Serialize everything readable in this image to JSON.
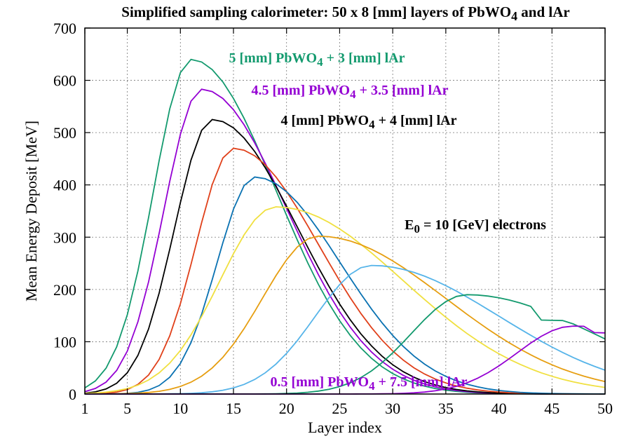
{
  "chart_data": {
    "type": "line",
    "title": {
      "pre": "Simplified sampling calorimeter: 50 x 8 [mm] layers of PbWO",
      "sub": "4",
      "post": " and lAr"
    },
    "xlabel": "Layer index",
    "ylabel": "Mean Energy Deposit [MeV]",
    "xlim": [
      1,
      50
    ],
    "ylim": [
      0,
      700
    ],
    "xticks": [
      1,
      5,
      10,
      15,
      20,
      25,
      30,
      35,
      40,
      45,
      50
    ],
    "yticks": [
      0,
      100,
      200,
      300,
      400,
      500,
      600,
      700
    ],
    "grid": true,
    "x": [
      1,
      2,
      3,
      4,
      5,
      6,
      7,
      8,
      9,
      10,
      11,
      12,
      13,
      14,
      15,
      16,
      17,
      18,
      19,
      20,
      21,
      22,
      23,
      24,
      25,
      26,
      27,
      28,
      29,
      30,
      31,
      32,
      33,
      34,
      35,
      36,
      37,
      38,
      39,
      40,
      41,
      42,
      43,
      44,
      45,
      46,
      47,
      48,
      49,
      50
    ],
    "series": [
      {
        "label_key": "s5",
        "color": "#139a6e",
        "peak_x": 11,
        "peak_y": 640,
        "rise": 0.2,
        "fall": 0.088,
        "tail": 142,
        "tail_start": 43
      },
      {
        "label_key": "s45",
        "color": "#9400d3",
        "peak_x": 12,
        "peak_y": 583,
        "rise": 0.2,
        "fall": 0.088
      },
      {
        "color": "#000000",
        "peak_x": 13,
        "peak_y": 525,
        "rise": 0.2,
        "fall": 0.088
      },
      {
        "color": "#e0401a",
        "peak_x": 15,
        "peak_y": 470,
        "rise": 0.2,
        "fall": 0.088
      },
      {
        "color": "#0a72b2",
        "peak_x": 17,
        "peak_y": 415,
        "rise": 0.2,
        "fall": 0.088
      },
      {
        "color": "#f0e040",
        "peak_x": 19,
        "peak_y": 358,
        "rise": 0.2,
        "fall": 0.088
      },
      {
        "color": "#e69e10",
        "peak_x": 23,
        "peak_y": 302,
        "rise": 0.2,
        "fall": 0.088
      },
      {
        "color": "#56b4e9",
        "peak_x": 28,
        "peak_y": 246,
        "rise": 0.2,
        "fall": 0.088
      },
      {
        "color": "#139a6e",
        "peak_x": 37,
        "peak_y": 190,
        "rise": 0.2,
        "fall": 0.088,
        "tail": 142,
        "tail_start": 43
      },
      {
        "label_key": "s05",
        "color": "#9400d3",
        "peak_x": 47,
        "peak_y": 130,
        "rise": 0.2,
        "fall": 0.088,
        "tail": 118,
        "tail_start": 48
      }
    ],
    "annotations": {
      "s5": {
        "pre": "5 [mm] PbWO",
        "sub": "4",
        "post": " + 3 [mm] lAr",
        "color": "#139a6e"
      },
      "s45": {
        "pre": "4.5 [mm] PbWO",
        "sub": "4",
        "post": " + 3.5 [mm] lAr",
        "color": "#9400d3"
      },
      "s4": {
        "pre": "4 [mm] PbWO",
        "sub": "4",
        "post": " + 4 [mm] lAr",
        "color": "#000000"
      },
      "energy": {
        "pre": "E",
        "sub": "0",
        "post": " = 10 [GeV] electrons",
        "color": "#000000"
      },
      "s05": {
        "pre": "0.5 [mm] PbWO",
        "sub": "4",
        "post": " + 7.5 [mm] lAr",
        "color": "#9400d3"
      }
    }
  }
}
